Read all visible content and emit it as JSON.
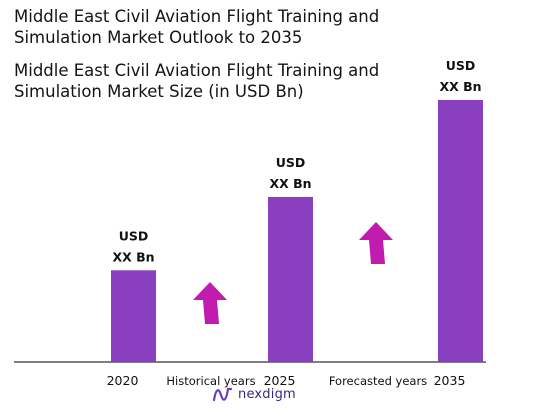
{
  "title_lines": [
    "Middle East Civil Aviation Flight Training and",
    "Simulation Market Outlook to 2035"
  ],
  "subtitle_lines": [
    "Middle East Civil Aviation Flight Training and",
    "Simulation Market Size (in USD Bn)"
  ],
  "colors": {
    "bar": "#8a3fc0",
    "arrow": "#c21bb0",
    "axis": "#333333",
    "logo": "#3a2a7a"
  },
  "icons": {
    "growth": "up-arrow-icon",
    "logo": "nexdigm-logo-icon"
  },
  "brand": {
    "name": "nexdigm"
  },
  "chart_data": {
    "type": "bar",
    "categories": [
      "2020",
      "2025",
      "2035"
    ],
    "relative_heights": [
      0.35,
      0.63,
      1.0
    ],
    "bar_labels": [
      [
        "USD",
        "XX Bn"
      ],
      [
        "USD",
        "XX Bn"
      ],
      [
        "USD",
        "XX Bn"
      ]
    ],
    "between_labels": [
      "Historical years",
      "Forecasted years"
    ],
    "axis_labels": {
      "xlabel": "",
      "ylabel": ""
    },
    "grid": false,
    "legend": "none"
  }
}
